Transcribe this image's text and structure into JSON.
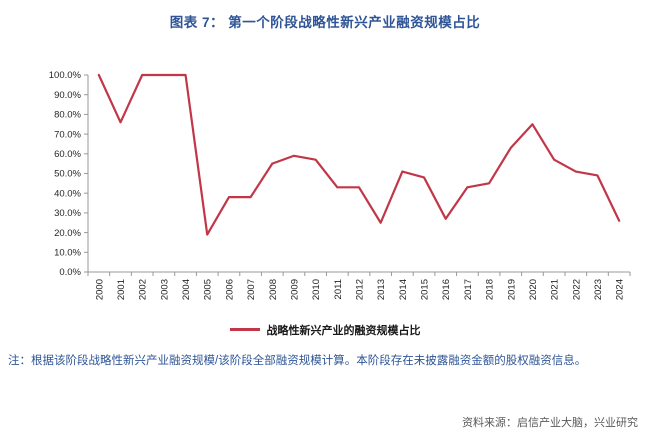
{
  "title": "图表 7： 第一个阶段战略性新兴产业融资规模占比",
  "legend_label": "战略性新兴产业的融资规模占比",
  "note": "注：根据该阶段战略性新兴产业融资规模/该阶段全部融资规模计算。本阶段存在未披露融资金额的股权融资信息。",
  "source": "资料来源：启信产业大脑，兴业研究",
  "colors": {
    "line_color": "#C13748",
    "title_color": "#2F5597",
    "note_color": "#2E5596",
    "source_color": "#595959",
    "axis_color": "#999999",
    "tick_text_color": "#262626"
  },
  "chart_data": {
    "type": "line",
    "title": "图表 7： 第一个阶段战略性新兴产业融资规模占比",
    "x": [
      2000,
      2001,
      2002,
      2003,
      2004,
      2005,
      2006,
      2007,
      2008,
      2009,
      2010,
      2011,
      2012,
      2013,
      2014,
      2015,
      2016,
      2017,
      2018,
      2019,
      2020,
      2021,
      2022,
      2023,
      2024
    ],
    "series": [
      {
        "name": "战略性新兴产业的融资规模占比",
        "values": [
          100,
          76,
          100,
          100,
          100,
          19,
          38,
          38,
          55,
          59,
          57,
          43,
          43,
          25,
          51,
          48,
          27,
          43,
          45,
          63,
          75,
          57,
          51,
          49,
          26
        ]
      }
    ],
    "xlabel": "",
    "ylabel": "",
    "ylim": [
      0,
      100
    ],
    "yticks": [
      0,
      10,
      20,
      30,
      40,
      50,
      60,
      70,
      80,
      90,
      100
    ],
    "ytick_format": "percent_one_decimal",
    "grid": false,
    "legend_position": "bottom"
  }
}
